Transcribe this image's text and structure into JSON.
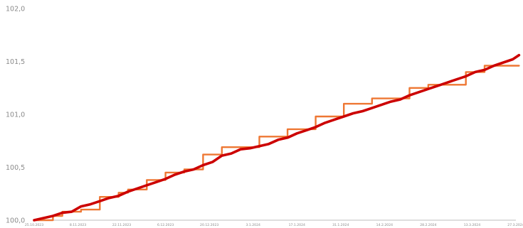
{
  "chart_data": {
    "type": "line",
    "title": "",
    "xlabel": "",
    "ylabel": "",
    "ylim": [
      100.0,
      102.0
    ],
    "y_ticks": [
      "100,0",
      "100,5",
      "101,0",
      "101,5",
      "102,0"
    ],
    "y_tick_values": [
      100.0,
      100.5,
      101.0,
      101.5,
      102.0
    ],
    "x_ticks": [
      "25.10.2023",
      "8.11.2023",
      "22.11.2023",
      "6.12.2023",
      "20.12.2023",
      "3.1.2024",
      "17.1.2024",
      "31.1.2024",
      "14.2.2024",
      "28.2.2024",
      "13.3.2024",
      "27.3.2024"
    ],
    "x_tick_dates": [
      "2023-10-25",
      "2023-11-08",
      "2023-11-22",
      "2023-12-06",
      "2023-12-20",
      "2024-01-03",
      "2024-01-17",
      "2024-01-31",
      "2024-02-14",
      "2024-02-28",
      "2024-03-13",
      "2024-03-27"
    ],
    "grid": false,
    "legend": "none",
    "colors": {
      "series1": "#cc0000",
      "series2": "#ee7733",
      "axis": "#bdbdbd",
      "tick": "#8a8a8a"
    },
    "series": [
      {
        "x": [
          "2023-10-25",
          "2023-10-28",
          "2023-10-31",
          "2023-11-03",
          "2023-11-06",
          "2023-11-09",
          "2023-11-12",
          "2023-11-15",
          "2023-11-18",
          "2023-11-21",
          "2023-11-24",
          "2023-11-27",
          "2023-11-30",
          "2023-12-03",
          "2023-12-06",
          "2023-12-09",
          "2023-12-12",
          "2023-12-15",
          "2023-12-18",
          "2023-12-21",
          "2023-12-24",
          "2023-12-27",
          "2023-12-30",
          "2024-01-02",
          "2024-01-05",
          "2024-01-08",
          "2024-01-11",
          "2024-01-14",
          "2024-01-17",
          "2024-01-20",
          "2024-01-23",
          "2024-01-26",
          "2024-01-29",
          "2024-02-01",
          "2024-02-04",
          "2024-02-07",
          "2024-02-10",
          "2024-02-13",
          "2024-02-16",
          "2024-02-19",
          "2024-02-22",
          "2024-02-25",
          "2024-02-28",
          "2024-03-02",
          "2024-03-05",
          "2024-03-08",
          "2024-03-11",
          "2024-03-14",
          "2024-03-17",
          "2024-03-20",
          "2024-03-23",
          "2024-03-26",
          "2024-03-28"
        ],
        "values": [
          100.0,
          100.02,
          100.04,
          100.07,
          100.08,
          100.13,
          100.15,
          100.18,
          100.21,
          100.23,
          100.27,
          100.3,
          100.33,
          100.36,
          100.39,
          100.43,
          100.46,
          100.48,
          100.52,
          100.55,
          100.61,
          100.63,
          100.67,
          100.68,
          100.7,
          100.72,
          100.76,
          100.78,
          100.82,
          100.85,
          100.88,
          100.92,
          100.95,
          100.98,
          101.01,
          101.03,
          101.06,
          101.09,
          101.12,
          101.14,
          101.18,
          101.21,
          101.24,
          101.27,
          101.3,
          101.33,
          101.36,
          101.4,
          101.42,
          101.46,
          101.49,
          101.52,
          101.56
        ]
      },
      {
        "x": [
          "2023-10-25",
          "2023-10-28",
          "2023-10-31",
          "2023-11-03",
          "2023-11-06",
          "2023-11-09",
          "2023-11-12",
          "2023-11-15",
          "2023-11-18",
          "2023-11-21",
          "2023-11-24",
          "2023-11-27",
          "2023-11-30",
          "2023-12-03",
          "2023-12-06",
          "2023-12-09",
          "2023-12-12",
          "2023-12-15",
          "2023-12-18",
          "2023-12-21",
          "2023-12-24",
          "2023-12-27",
          "2023-12-30",
          "2024-01-02",
          "2024-01-05",
          "2024-01-08",
          "2024-01-11",
          "2024-01-14",
          "2024-01-17",
          "2024-01-20",
          "2024-01-23",
          "2024-01-26",
          "2024-01-29",
          "2024-02-01",
          "2024-02-04",
          "2024-02-07",
          "2024-02-10",
          "2024-02-13",
          "2024-02-16",
          "2024-02-19",
          "2024-02-22",
          "2024-02-25",
          "2024-02-28",
          "2024-03-02",
          "2024-03-05",
          "2024-03-08",
          "2024-03-11",
          "2024-03-14",
          "2024-03-17",
          "2024-03-20",
          "2024-03-23",
          "2024-03-26",
          "2024-03-28"
        ],
        "values": [
          100.0,
          100.0,
          100.04,
          100.08,
          100.08,
          100.1,
          100.1,
          100.22,
          100.22,
          100.26,
          100.29,
          100.29,
          100.38,
          100.38,
          100.45,
          100.45,
          100.48,
          100.48,
          100.62,
          100.62,
          100.69,
          100.69,
          100.69,
          100.69,
          100.79,
          100.79,
          100.79,
          100.86,
          100.86,
          100.86,
          100.98,
          100.98,
          100.98,
          101.1,
          101.1,
          101.1,
          101.15,
          101.15,
          101.15,
          101.15,
          101.25,
          101.25,
          101.28,
          101.28,
          101.28,
          101.28,
          101.4,
          101.4,
          101.46,
          101.46,
          101.46,
          101.46,
          101.46
        ]
      }
    ]
  }
}
